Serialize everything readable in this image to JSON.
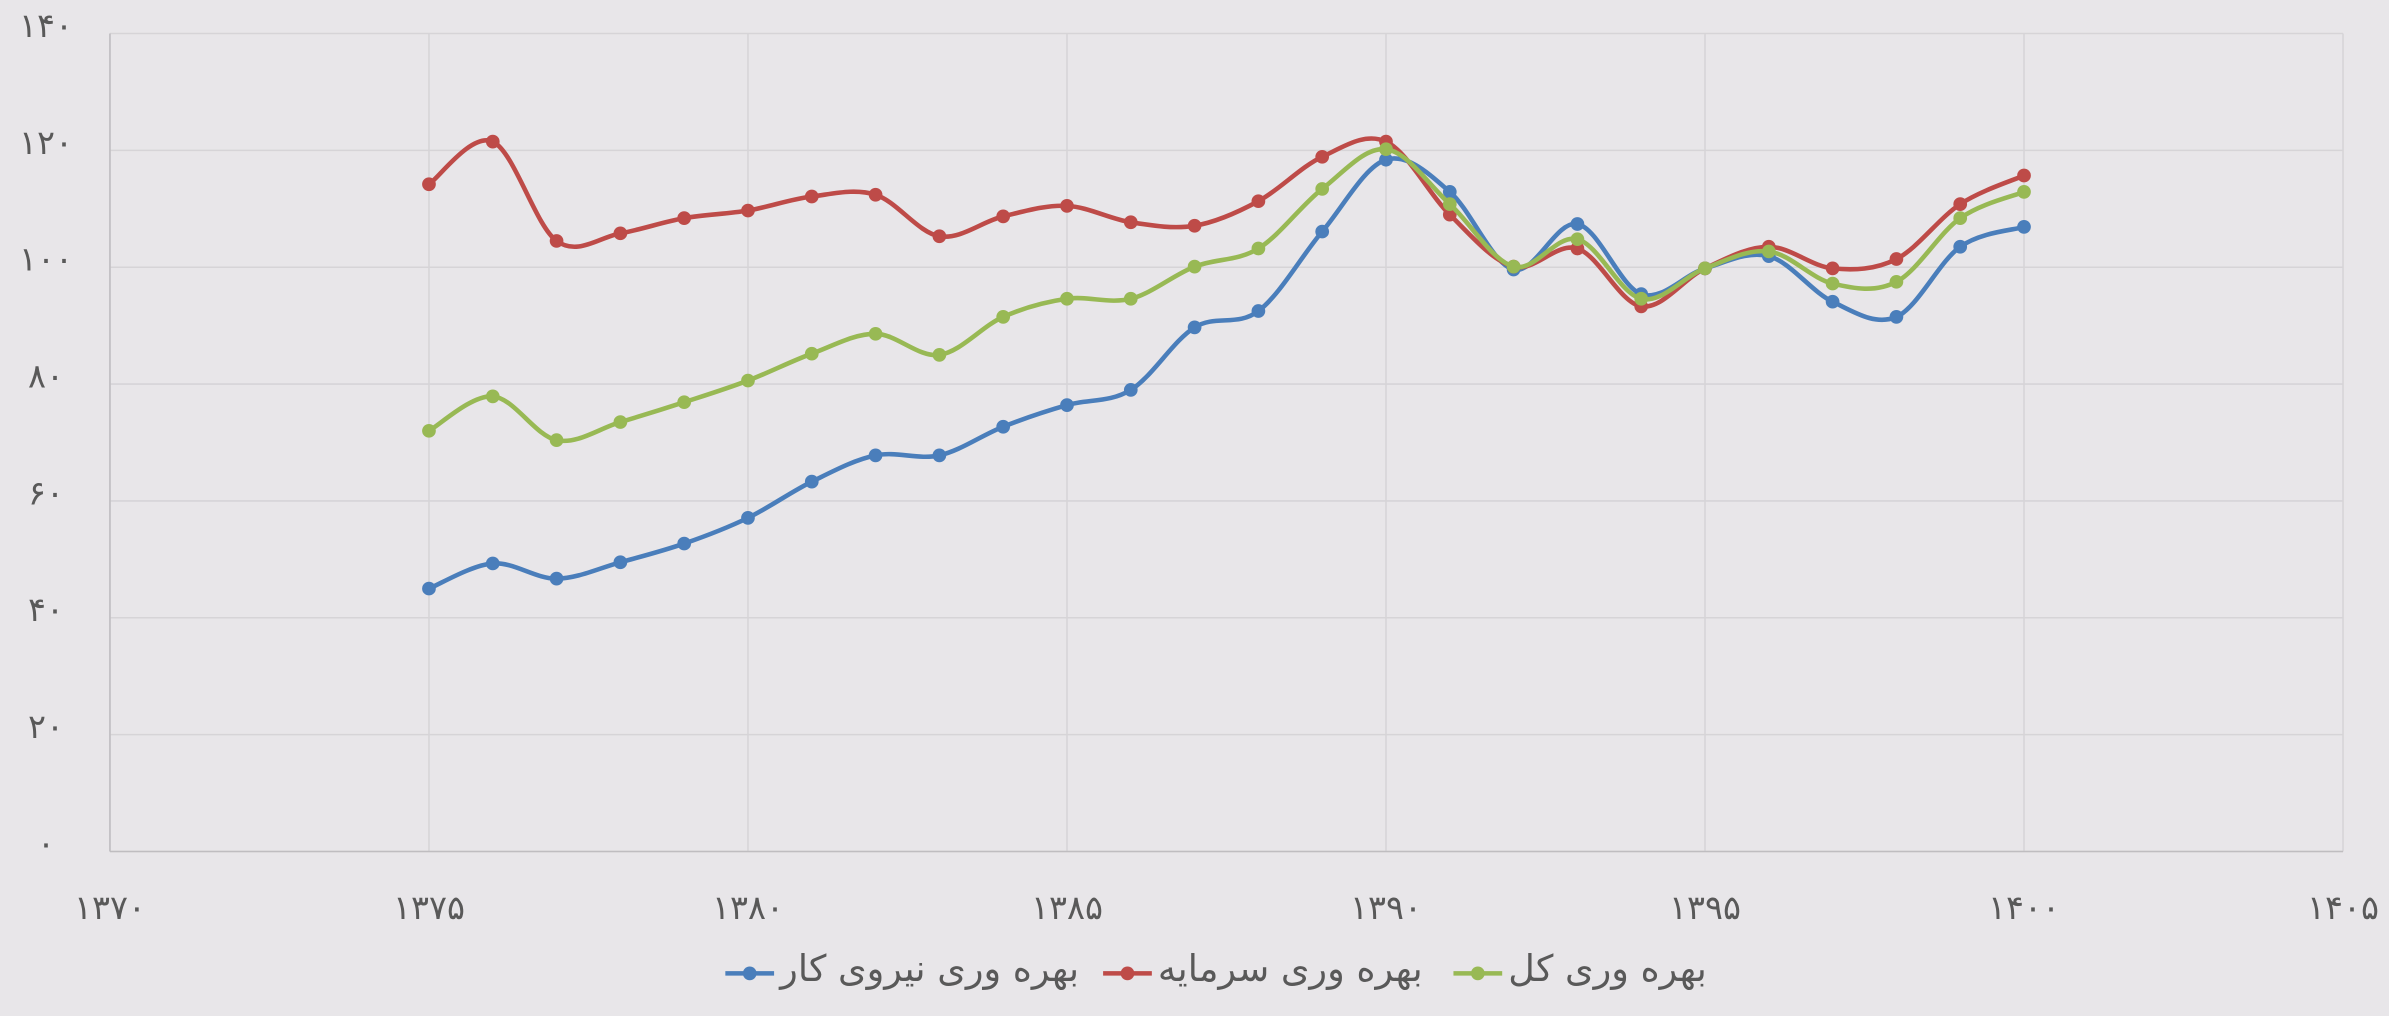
{
  "chart_data": {
    "type": "line",
    "x": [
      1375,
      1376,
      1377,
      1378,
      1379,
      1380,
      1381,
      1382,
      1383,
      1384,
      1385,
      1386,
      1387,
      1388,
      1389,
      1390,
      1391,
      1392,
      1393,
      1394,
      1395,
      1396,
      1397,
      1398,
      1399,
      1400
    ],
    "series": [
      {
        "name": "بهره وری نیروی کار",
        "color": "#4a7ebb",
        "values": [
          45,
          49.3,
          46.7,
          49.5,
          52.7,
          57.1,
          63.3,
          67.8,
          67.8,
          72.7,
          76.4,
          79,
          89.7,
          92.5,
          106.1,
          118.4,
          112.9,
          99.6,
          107.4,
          95.4,
          99.8,
          101.9,
          94.1,
          91.5,
          103.5,
          106.9
        ]
      },
      {
        "name": "بهره وری سرمایه",
        "color": "#be4b48",
        "values": [
          114.2,
          121.5,
          104.5,
          105.8,
          108.4,
          109.7,
          112.1,
          112.4,
          105.3,
          108.7,
          110.5,
          107.7,
          107.1,
          111.3,
          118.9,
          121.5,
          109,
          100.1,
          103.2,
          93.3,
          99.8,
          103.5,
          99.8,
          101.4,
          110.8,
          115.7
        ]
      },
      {
        "name": "بهره وری کل",
        "color": "#98b954",
        "values": [
          72,
          77.9,
          70.4,
          73.5,
          76.9,
          80.6,
          85.2,
          88.6,
          85,
          91.5,
          94.6,
          94.6,
          100.1,
          103.2,
          113.4,
          120.2,
          110.8,
          100.1,
          104.8,
          94.6,
          99.8,
          102.7,
          97.2,
          97.5,
          108.4,
          112.9
        ]
      }
    ],
    "xlim": [
      1370,
      1405
    ],
    "xticks": [
      {
        "value": 1370,
        "label": "۱۳۷۰"
      },
      {
        "value": 1375,
        "label": "۱۳۷۵"
      },
      {
        "value": 1380,
        "label": "۱۳۸۰"
      },
      {
        "value": 1385,
        "label": "۱۳۸۵"
      },
      {
        "value": 1390,
        "label": "۱۳۹۰"
      },
      {
        "value": 1395,
        "label": "۱۳۹۵"
      },
      {
        "value": 1400,
        "label": "۱۴۰۰"
      },
      {
        "value": 1405,
        "label": "۱۴۰۵"
      }
    ],
    "ylim": [
      0,
      140
    ],
    "yticks": [
      {
        "value": 0,
        "label": "۰"
      },
      {
        "value": 20,
        "label": "۲۰"
      },
      {
        "value": 40,
        "label": "۴۰"
      },
      {
        "value": 60,
        "label": "۶۰"
      },
      {
        "value": 80,
        "label": "۸۰"
      },
      {
        "value": 100,
        "label": "۱۰۰"
      },
      {
        "value": 120,
        "label": "۱۲۰"
      },
      {
        "value": 140,
        "label": "۱۴۰"
      }
    ],
    "grid": true,
    "legend": "bottom"
  }
}
